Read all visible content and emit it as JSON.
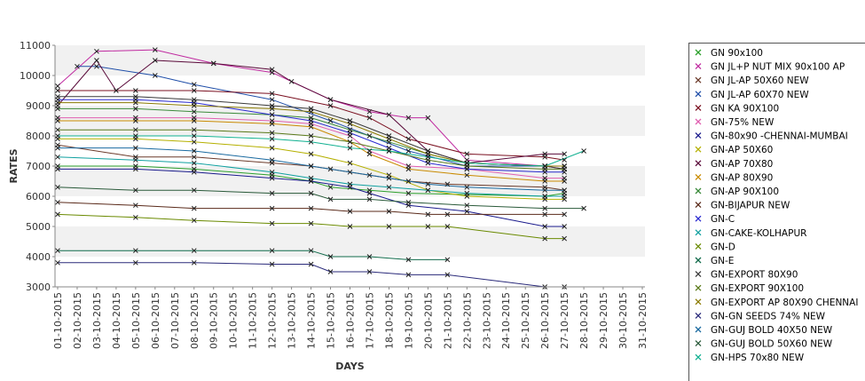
{
  "chart_data": {
    "type": "line",
    "xlabel": "DAYS",
    "ylabel": "RATES",
    "ylim": [
      3000,
      11000
    ],
    "yticks": [
      "3000",
      "4000",
      "5000",
      "6000",
      "7000",
      "8000",
      "9000",
      "10000",
      "11000"
    ],
    "grid": "horizontal alternating bands",
    "legend_position": "right",
    "marker": "x",
    "categories": [
      "01-10-2015",
      "02-10-2015",
      "03-10-2015",
      "04-10-2015",
      "05-10-2015",
      "06-10-2015",
      "07-10-2015",
      "08-10-2015",
      "09-10-2015",
      "10-10-2015",
      "11-10-2015",
      "12-10-2015",
      "13-10-2015",
      "14-10-2015",
      "15-10-2015",
      "16-10-2015",
      "17-10-2015",
      "18-10-2015",
      "19-10-2015",
      "20-10-2015",
      "21-10-2015",
      "22-10-2015",
      "23-10-2015",
      "24-10-2015",
      "25-10-2015",
      "26-10-2015",
      "27-10-2015",
      "28-10-2015",
      "29-10-2015",
      "30-10-2015",
      "31-10-2015"
    ],
    "series": [
      {
        "name": "GN 90x100",
        "color": "#2ca02c",
        "points": [
          [
            0,
            7000
          ],
          [
            4,
            7000
          ],
          [
            7,
            6900
          ],
          [
            11,
            6700
          ],
          [
            13,
            6500
          ],
          [
            14,
            6300
          ],
          [
            16,
            6200
          ],
          [
            18,
            6100
          ],
          [
            25,
            6000
          ],
          [
            26,
            6100
          ]
        ]
      },
      {
        "name": "GN JL+P NUT MIX 90x100 AP",
        "color": "#c02aa0",
        "points": [
          [
            0,
            9650
          ],
          [
            2,
            10800
          ],
          [
            5,
            10850
          ],
          [
            8,
            10400
          ],
          [
            11,
            10100
          ],
          [
            14,
            9200
          ],
          [
            16,
            8800
          ],
          [
            18,
            8600
          ],
          [
            19,
            8600
          ],
          [
            21,
            7200
          ],
          [
            25,
            7000
          ],
          [
            26,
            6900
          ]
        ]
      },
      {
        "name": "GN JL-AP 50X60 NEW",
        "color": "#6b3a2a",
        "points": [
          [
            0,
            7700
          ],
          [
            4,
            7300
          ],
          [
            7,
            7300
          ],
          [
            11,
            7100
          ],
          [
            13,
            7000
          ],
          [
            14,
            6900
          ],
          [
            16,
            6700
          ],
          [
            18,
            6500
          ],
          [
            20,
            6400
          ],
          [
            25,
            6300
          ],
          [
            26,
            6200
          ]
        ]
      },
      {
        "name": "GN JL-AP 60X70 NEW",
        "color": "#1f4ea8",
        "points": [
          [
            1,
            10300
          ],
          [
            2,
            10300
          ],
          [
            5,
            10000
          ],
          [
            7,
            9700
          ],
          [
            11,
            9200
          ],
          [
            14,
            8500
          ],
          [
            16,
            8000
          ],
          [
            18,
            7500
          ],
          [
            21,
            7000
          ],
          [
            25,
            7000
          ],
          [
            26,
            7000
          ]
        ]
      },
      {
        "name": "GN KA 90X100",
        "color": "#7a1020",
        "points": [
          [
            0,
            9500
          ],
          [
            4,
            9500
          ],
          [
            7,
            9500
          ],
          [
            11,
            9400
          ],
          [
            14,
            9000
          ],
          [
            16,
            8600
          ],
          [
            18,
            7900
          ],
          [
            21,
            7400
          ],
          [
            25,
            7300
          ],
          [
            26,
            7200
          ]
        ]
      },
      {
        "name": "GN-75% NEW",
        "color": "#e05fb0",
        "points": [
          [
            0,
            8600
          ],
          [
            4,
            8600
          ],
          [
            7,
            8600
          ],
          [
            11,
            8500
          ],
          [
            13,
            8400
          ],
          [
            15,
            8000
          ],
          [
            16,
            7500
          ],
          [
            18,
            7000
          ],
          [
            21,
            6900
          ],
          [
            25,
            6600
          ],
          [
            26,
            6600
          ]
        ]
      },
      {
        "name": "GN-80x90 -CHENNAI-MUMBAI",
        "color": "#1a1a8c",
        "points": [
          [
            0,
            6900
          ],
          [
            4,
            6900
          ],
          [
            7,
            6800
          ],
          [
            11,
            6600
          ],
          [
            13,
            6500
          ],
          [
            15,
            6300
          ],
          [
            16,
            6100
          ],
          [
            18,
            5700
          ],
          [
            21,
            5500
          ],
          [
            25,
            5000
          ],
          [
            26,
            5000
          ]
        ]
      },
      {
        "name": "GN-AP 50X60",
        "color": "#b5b000",
        "points": [
          [
            0,
            7900
          ],
          [
            4,
            7900
          ],
          [
            7,
            7800
          ],
          [
            11,
            7600
          ],
          [
            13,
            7400
          ],
          [
            15,
            7100
          ],
          [
            17,
            6700
          ],
          [
            19,
            6200
          ],
          [
            21,
            6000
          ],
          [
            25,
            5900
          ],
          [
            26,
            5900
          ]
        ]
      },
      {
        "name": "GN-AP 70X80",
        "color": "#5a0a3a",
        "points": [
          [
            0,
            9000
          ],
          [
            2,
            10500
          ],
          [
            3,
            9500
          ],
          [
            5,
            10500
          ],
          [
            8,
            10400
          ],
          [
            11,
            10200
          ],
          [
            12,
            9800
          ],
          [
            14,
            9200
          ],
          [
            17,
            8700
          ],
          [
            19,
            7500
          ],
          [
            21,
            7100
          ],
          [
            25,
            7400
          ],
          [
            26,
            7400
          ]
        ]
      },
      {
        "name": "GN-AP 80X90",
        "color": "#c98a00",
        "points": [
          [
            0,
            8500
          ],
          [
            4,
            8500
          ],
          [
            7,
            8500
          ],
          [
            11,
            8400
          ],
          [
            13,
            8300
          ],
          [
            15,
            7800
          ],
          [
            16,
            7400
          ],
          [
            18,
            6900
          ],
          [
            21,
            6700
          ],
          [
            25,
            6500
          ],
          [
            26,
            6500
          ]
        ]
      },
      {
        "name": "GN-AP 90X100",
        "color": "#3a8a3a",
        "points": [
          [
            0,
            8900
          ],
          [
            4,
            8900
          ],
          [
            7,
            8800
          ],
          [
            11,
            8700
          ],
          [
            13,
            8600
          ],
          [
            15,
            8200
          ],
          [
            17,
            7800
          ],
          [
            19,
            7400
          ],
          [
            21,
            7100
          ],
          [
            25,
            7000
          ],
          [
            26,
            7000
          ]
        ]
      },
      {
        "name": "GN-BIJAPUR NEW",
        "color": "#5a2a1a",
        "points": [
          [
            0,
            5800
          ],
          [
            4,
            5700
          ],
          [
            7,
            5600
          ],
          [
            11,
            5600
          ],
          [
            13,
            5600
          ],
          [
            15,
            5500
          ],
          [
            17,
            5500
          ],
          [
            19,
            5400
          ],
          [
            20,
            5400
          ],
          [
            25,
            5400
          ],
          [
            26,
            5400
          ]
        ]
      },
      {
        "name": "GN-C",
        "color": "#2a2ad0",
        "points": [
          [
            0,
            9200
          ],
          [
            4,
            9200
          ],
          [
            7,
            9100
          ],
          [
            11,
            8700
          ],
          [
            13,
            8500
          ],
          [
            15,
            8100
          ],
          [
            17,
            7600
          ],
          [
            19,
            7100
          ],
          [
            21,
            6900
          ],
          [
            25,
            6800
          ],
          [
            26,
            6800
          ]
        ]
      },
      {
        "name": "GN-CAKE-KOLHAPUR",
        "color": "#10a0a0",
        "points": [
          [
            0,
            7300
          ],
          [
            4,
            7200
          ],
          [
            7,
            7100
          ],
          [
            11,
            6800
          ],
          [
            13,
            6600
          ],
          [
            15,
            6400
          ],
          [
            17,
            6300
          ],
          [
            19,
            6200
          ],
          [
            21,
            6100
          ],
          [
            25,
            6000
          ],
          [
            26,
            6000
          ]
        ]
      },
      {
        "name": "GN-D",
        "color": "#6a8a00",
        "points": [
          [
            0,
            5400
          ],
          [
            4,
            5300
          ],
          [
            7,
            5200
          ],
          [
            11,
            5100
          ],
          [
            13,
            5100
          ],
          [
            15,
            5000
          ],
          [
            17,
            5000
          ],
          [
            19,
            5000
          ],
          [
            20,
            5000
          ],
          [
            25,
            4600
          ],
          [
            26,
            4600
          ]
        ]
      },
      {
        "name": "GN-E",
        "color": "#106a4a",
        "points": [
          [
            0,
            4200
          ],
          [
            4,
            4200
          ],
          [
            7,
            4200
          ],
          [
            11,
            4200
          ],
          [
            13,
            4200
          ],
          [
            14,
            4000
          ],
          [
            16,
            4000
          ],
          [
            18,
            3900
          ],
          [
            20,
            3900
          ]
        ]
      },
      {
        "name": "GN-EXPORT 80X90",
        "color": "#3a3a3a",
        "points": [
          [
            0,
            9300
          ],
          [
            4,
            9300
          ],
          [
            7,
            9200
          ],
          [
            11,
            9000
          ],
          [
            13,
            8900
          ],
          [
            15,
            8500
          ],
          [
            17,
            8000
          ],
          [
            19,
            7500
          ],
          [
            21,
            7100
          ],
          [
            25,
            7000
          ],
          [
            26,
            6900
          ]
        ]
      },
      {
        "name": "GN-EXPORT 90X100",
        "color": "#5a7a1a",
        "points": [
          [
            0,
            8200
          ],
          [
            4,
            8200
          ],
          [
            7,
            8200
          ],
          [
            11,
            8100
          ],
          [
            13,
            8000
          ],
          [
            15,
            7800
          ],
          [
            17,
            7500
          ],
          [
            19,
            7200
          ],
          [
            21,
            7000
          ],
          [
            25,
            6900
          ],
          [
            26,
            6900
          ]
        ]
      },
      {
        "name": "GN-EXPORT AP 80X90 CHENNAI",
        "color": "#8a7a00",
        "points": [
          [
            0,
            9100
          ],
          [
            4,
            9100
          ],
          [
            7,
            9000
          ],
          [
            11,
            8900
          ],
          [
            13,
            8800
          ],
          [
            15,
            8400
          ],
          [
            17,
            7900
          ],
          [
            19,
            7400
          ],
          [
            21,
            7100
          ],
          [
            25,
            7000
          ],
          [
            26,
            7000
          ]
        ]
      },
      {
        "name": "GN-GN SEEDS 74% NEW",
        "color": "#2a2a7a",
        "points": [
          [
            0,
            3800
          ],
          [
            4,
            3800
          ],
          [
            7,
            3800
          ],
          [
            11,
            3750
          ],
          [
            13,
            3750
          ],
          [
            14,
            3500
          ],
          [
            16,
            3500
          ],
          [
            18,
            3400
          ],
          [
            20,
            3400
          ],
          [
            25,
            3000
          ],
          [
            26,
            3000
          ]
        ]
      },
      {
        "name": "GN-GUJ BOLD 40X50 NEW",
        "color": "#1a6aa0",
        "points": [
          [
            0,
            7600
          ],
          [
            4,
            7600
          ],
          [
            7,
            7500
          ],
          [
            11,
            7200
          ],
          [
            13,
            7000
          ],
          [
            15,
            6800
          ],
          [
            17,
            6600
          ],
          [
            19,
            6400
          ],
          [
            21,
            6300
          ],
          [
            25,
            6200
          ],
          [
            26,
            6200
          ]
        ]
      },
      {
        "name": "GN-GUJ BOLD 50X60 NEW",
        "color": "#2a5a3a",
        "points": [
          [
            0,
            6300
          ],
          [
            4,
            6200
          ],
          [
            7,
            6200
          ],
          [
            11,
            6100
          ],
          [
            13,
            6100
          ],
          [
            14,
            5900
          ],
          [
            16,
            5900
          ],
          [
            18,
            5800
          ],
          [
            21,
            5700
          ],
          [
            25,
            5600
          ],
          [
            27,
            5600
          ]
        ]
      },
      {
        "name": "GN-HPS  70x80 NEW",
        "color": "#10b090",
        "points": [
          [
            0,
            8000
          ],
          [
            4,
            8000
          ],
          [
            7,
            8000
          ],
          [
            11,
            7900
          ],
          [
            13,
            7800
          ],
          [
            15,
            7600
          ],
          [
            17,
            7500
          ],
          [
            19,
            7300
          ],
          [
            21,
            7100
          ],
          [
            25,
            7000
          ],
          [
            27,
            7500
          ]
        ]
      }
    ]
  }
}
